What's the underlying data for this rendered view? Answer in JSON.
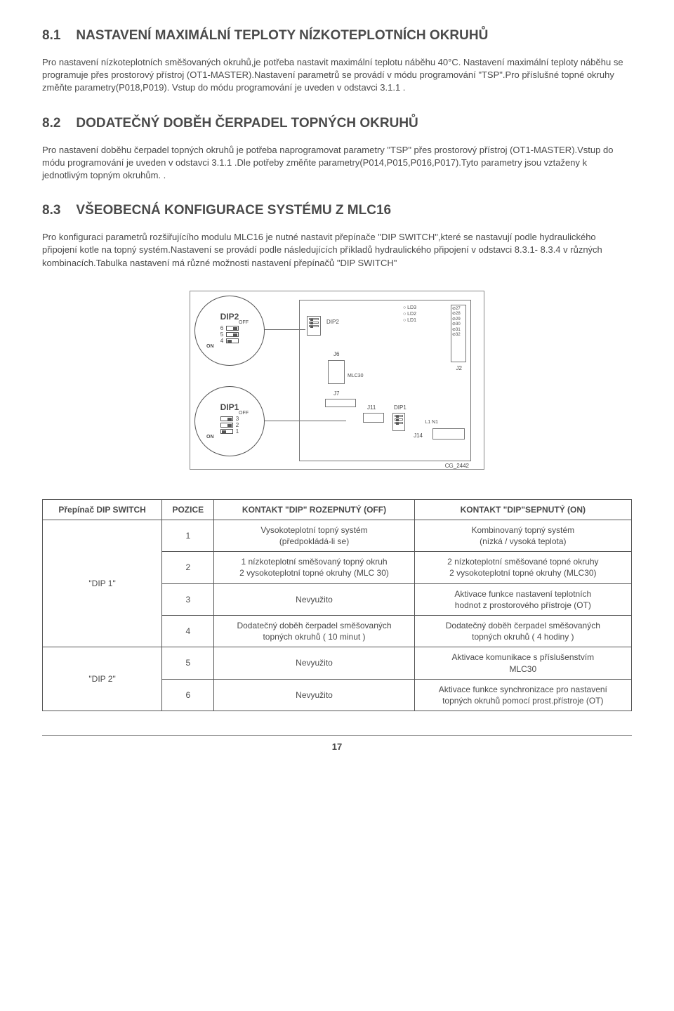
{
  "sections": {
    "s81": {
      "num": "8.1",
      "title": "NASTAVENÍ MAXIMÁLNÍ TEPLOTY NÍZKOTEPLOTNÍCH OKRUHŮ",
      "para": "Pro nastavení nízkoteplotních směšovaných okruhů,je potřeba nastavit maximální teplotu náběhu 40°C. Nastavení maximální teploty náběhu se programuje přes prostorový přístroj (OT1-MASTER).Nastavení parametrů se provádí v módu programování \"TSP\".Pro příslušné topné okruhy změňte parametry(P018,P019). Vstup do módu programování je uveden v odstavci 3.1.1 ."
    },
    "s82": {
      "num": "8.2",
      "title": "DODATEČNÝ DOBĚH ČERPADEL TOPNÝCH OKRUHŮ",
      "para": "Pro nastavení doběhu čerpadel topných okruhů je potřeba naprogramovat parametry \"TSP\" přes prostorový přístroj (OT1-MASTER).Vstup do módu programování je uveden v odstavci 3.1.1 .Dle potřeby změňte parametry(P014,P015,P016,P017).Tyto parametry jsou vztaženy k jednotlivým topným okruhům. ."
    },
    "s83": {
      "num": "8.3",
      "title": "VŠEOBECNÁ KONFIGURACE SYSTÉMU Z MLC16",
      "para": "Pro konfiguraci parametrů rozšiřujícího modulu MLC16 je nutné nastavit přepínače \"DIP SWITCH\",které se nastavují podle hydraulického připojení kotle na topný systém.Nastavení se provádí podle následujících příkladů hydraulického připojení v odstavci 8.3.1- 8.3.4 v různých kombinacích.Tabulka nastavení má různé možnosti nastavení přepínačů \"DIP SWITCH\""
    }
  },
  "diagram": {
    "dip2_label": "DIP2",
    "dip1_label": "DIP1",
    "off": "OFF",
    "on": "ON",
    "dip2_nums": [
      "6",
      "5",
      "4"
    ],
    "dip1_nums": [
      "3",
      "2",
      "1"
    ],
    "pcb": {
      "dip2": "DIP2",
      "dip1": "DIP1",
      "j6": "J6",
      "j7": "J7",
      "j11": "J11",
      "j2": "J2",
      "j14": "J14",
      "mlc30": "MLC30",
      "l1n1": "L1  N1",
      "leds": [
        "LD3",
        "LD2",
        "LD1"
      ],
      "j2pins": [
        "27",
        "28",
        "29",
        "30",
        "31",
        "32"
      ],
      "code": "CG_2442"
    }
  },
  "table": {
    "headers": {
      "c1": "Přepínač DIP SWITCH",
      "c2": "POZICE",
      "c3": "KONTAKT \"DIP\" ROZEPNUTÝ (OFF)",
      "c4": "KONTAKT \"DIP\"SEPNUTÝ (ON)"
    },
    "group1": "\"DIP 1\"",
    "group2": "\"DIP 2\"",
    "rows": [
      {
        "pos": "1",
        "off": "Vysokoteplotní topný systém\n(předpokládá-li se)",
        "on": "Kombinovaný topný systém\n(nízká / vysoká teplota)"
      },
      {
        "pos": "2",
        "off": "1 nízkoteplotní směšovaný topný okruh\n2 vysokoteplotní topné okruhy (MLC 30)",
        "on": "2 nízkoteplotní směšované topné okruhy\n2 vysokoteplotní topné okruhy (MLC30)"
      },
      {
        "pos": "3",
        "off": "Nevyužito",
        "on": "Aktivace funkce nastavení teplotních\nhodnot z prostorového přístroje (OT)"
      },
      {
        "pos": "4",
        "off": "Dodatečný doběh čerpadel směšovaných\ntopných okruhů ( 10 minut )",
        "on": "Dodatečný doběh čerpadel směšovaných\ntopných okruhů ( 4 hodiny )"
      },
      {
        "pos": "5",
        "off": "Nevyužito",
        "on": "Aktivace komunikace s příslušenstvím\nMLC30"
      },
      {
        "pos": "6",
        "off": "Nevyužito",
        "on": "Aktivace funkce synchronizace pro nastavení\ntopných okruhů pomocí prost.přístroje (OT)"
      }
    ]
  },
  "page": "17"
}
